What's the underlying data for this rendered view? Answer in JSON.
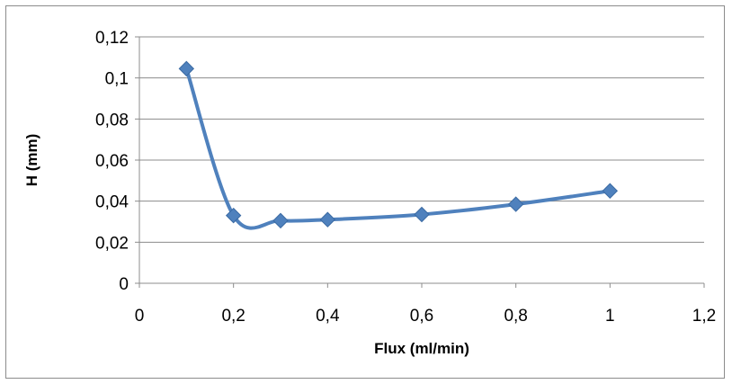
{
  "chart_data": {
    "type": "line",
    "smooth": true,
    "marker": "diamond",
    "title": "",
    "xlabel": "Flux (ml/min)",
    "ylabel": "H (mm)",
    "xlim": [
      0,
      1.2
    ],
    "ylim": [
      0,
      0.12
    ],
    "x_ticks": [
      0,
      0.2,
      0.4,
      0.6,
      0.8,
      1.0,
      1.2
    ],
    "x_tick_labels": [
      "0",
      "0,2",
      "0,4",
      "0,6",
      "0,8",
      "1",
      "1,2"
    ],
    "y_ticks": [
      0,
      0.02,
      0.04,
      0.06,
      0.08,
      0.1,
      0.12
    ],
    "y_tick_labels": [
      "0",
      "0,02",
      "0,04",
      "0,06",
      "0,08",
      "0,1",
      "0,12"
    ],
    "grid": "horizontal",
    "legend": "none",
    "series": [
      {
        "x": [
          0.1,
          0.2,
          0.3,
          0.4,
          0.6,
          0.8,
          1.0
        ],
        "y": [
          0.1045,
          0.033,
          0.0305,
          0.031,
          0.0335,
          0.0385,
          0.045
        ],
        "color": "#4f81bd"
      }
    ]
  }
}
